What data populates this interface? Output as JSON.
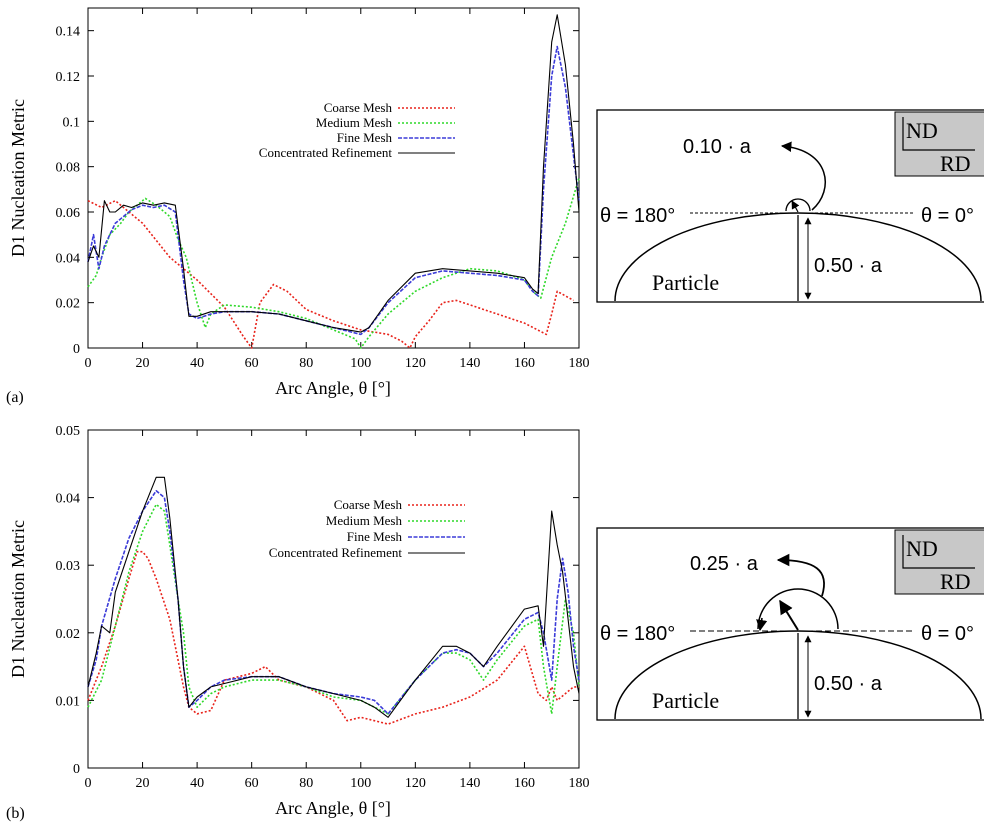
{
  "colors": {
    "coarse": "#e8231b",
    "medium": "#2fd82a",
    "fine": "#3b3bd8",
    "concentrated": "#000000",
    "schematic_box": "#c8c8c8"
  },
  "chart_data": [
    {
      "type": "line",
      "panel": "(a)",
      "xlabel": "Arc Angle, θ [°]",
      "ylabel": "D1 Nucleation Metric",
      "xlim": [
        0,
        180
      ],
      "ylim": [
        0,
        0.15
      ],
      "x_ticks": [
        0,
        20,
        40,
        60,
        80,
        100,
        120,
        140,
        160,
        180
      ],
      "y_ticks": [
        0,
        0.02,
        0.04,
        0.06,
        0.08,
        0.1,
        0.12,
        0.14
      ],
      "legend_position": "top-center",
      "series": [
        {
          "name": "Coarse Mesh",
          "x": [
            0,
            5,
            10,
            20,
            30,
            40,
            50,
            57,
            60,
            63,
            68,
            73,
            80,
            90,
            100,
            105,
            110,
            115,
            118,
            120,
            125,
            130,
            135,
            140,
            150,
            160,
            168,
            170,
            172,
            175,
            178
          ],
          "y": [
            0.065,
            0.062,
            0.065,
            0.055,
            0.04,
            0.03,
            0.018,
            0.005,
            0.0,
            0.02,
            0.028,
            0.025,
            0.017,
            0.012,
            0.008,
            0.007,
            0.006,
            0.003,
            0.0,
            0.005,
            0.012,
            0.02,
            0.021,
            0.019,
            0.015,
            0.011,
            0.006,
            0.015,
            0.025,
            0.023,
            0.021
          ]
        },
        {
          "name": "Medium Mesh",
          "x": [
            0,
            3,
            5,
            8,
            12,
            15,
            18,
            21,
            25,
            30,
            33,
            36,
            40,
            43,
            45,
            50,
            60,
            70,
            80,
            90,
            98,
            100,
            103,
            110,
            120,
            130,
            140,
            150,
            160,
            163,
            166,
            170,
            175,
            180
          ],
          "y": [
            0.027,
            0.032,
            0.04,
            0.05,
            0.055,
            0.06,
            0.063,
            0.066,
            0.063,
            0.058,
            0.048,
            0.04,
            0.02,
            0.009,
            0.015,
            0.019,
            0.018,
            0.016,
            0.013,
            0.008,
            0.004,
            0.0,
            0.005,
            0.015,
            0.025,
            0.031,
            0.035,
            0.034,
            0.03,
            0.025,
            0.022,
            0.04,
            0.055,
            0.075
          ]
        },
        {
          "name": "Fine Mesh",
          "x": [
            0,
            2,
            4,
            6,
            8,
            10,
            13,
            16,
            20,
            24,
            28,
            32,
            35,
            37,
            40,
            45,
            50,
            60,
            70,
            80,
            90,
            100,
            103,
            110,
            120,
            130,
            140,
            150,
            160,
            163,
            165,
            167,
            170,
            172,
            175,
            178,
            180
          ],
          "y": [
            0.038,
            0.05,
            0.035,
            0.045,
            0.05,
            0.055,
            0.058,
            0.061,
            0.063,
            0.062,
            0.063,
            0.06,
            0.03,
            0.015,
            0.013,
            0.015,
            0.016,
            0.016,
            0.015,
            0.012,
            0.009,
            0.006,
            0.009,
            0.02,
            0.031,
            0.034,
            0.033,
            0.032,
            0.03,
            0.025,
            0.023,
            0.07,
            0.12,
            0.133,
            0.115,
            0.085,
            0.065
          ]
        },
        {
          "name": "Concentrated Refinement",
          "x": [
            0,
            2,
            4,
            6,
            8,
            10,
            13,
            16,
            20,
            24,
            28,
            32,
            35,
            37,
            40,
            45,
            50,
            60,
            70,
            80,
            90,
            100,
            103,
            110,
            120,
            130,
            140,
            150,
            160,
            163,
            165,
            167,
            170,
            172,
            175,
            178,
            180
          ],
          "y": [
            0.038,
            0.045,
            0.04,
            0.065,
            0.06,
            0.06,
            0.063,
            0.062,
            0.064,
            0.063,
            0.064,
            0.063,
            0.035,
            0.014,
            0.014,
            0.016,
            0.016,
            0.016,
            0.015,
            0.012,
            0.009,
            0.007,
            0.009,
            0.021,
            0.033,
            0.035,
            0.034,
            0.033,
            0.031,
            0.026,
            0.024,
            0.08,
            0.135,
            0.147,
            0.125,
            0.09,
            0.06
          ]
        }
      ]
    },
    {
      "type": "line",
      "panel": "(b)",
      "xlabel": "Arc Angle, θ [°]",
      "ylabel": "D1 Nucleation Metric",
      "xlim": [
        0,
        180
      ],
      "ylim": [
        0,
        0.05
      ],
      "x_ticks": [
        0,
        20,
        40,
        60,
        80,
        100,
        120,
        140,
        160,
        180
      ],
      "y_ticks": [
        0,
        0.01,
        0.02,
        0.03,
        0.04,
        0.05
      ],
      "legend_position": "center-right",
      "series": [
        {
          "name": "Coarse Mesh",
          "x": [
            0,
            5,
            10,
            15,
            18,
            20,
            22,
            25,
            30,
            35,
            37,
            40,
            45,
            50,
            60,
            65,
            70,
            80,
            90,
            95,
            100,
            105,
            110,
            120,
            130,
            140,
            150,
            160,
            165,
            168,
            170,
            172,
            175,
            178,
            180
          ],
          "y": [
            0.01,
            0.015,
            0.021,
            0.028,
            0.032,
            0.032,
            0.031,
            0.028,
            0.022,
            0.012,
            0.009,
            0.008,
            0.0085,
            0.013,
            0.014,
            0.015,
            0.013,
            0.012,
            0.01,
            0.007,
            0.0075,
            0.007,
            0.0065,
            0.008,
            0.009,
            0.0105,
            0.013,
            0.018,
            0.011,
            0.01,
            0.012,
            0.01,
            0.011,
            0.012,
            0.012
          ]
        },
        {
          "name": "Medium Mesh",
          "x": [
            0,
            5,
            10,
            15,
            20,
            25,
            28,
            30,
            33,
            35,
            37,
            40,
            45,
            50,
            60,
            70,
            80,
            90,
            100,
            105,
            110,
            120,
            130,
            135,
            140,
            145,
            150,
            160,
            165,
            167,
            170,
            172,
            175,
            178,
            180
          ],
          "y": [
            0.009,
            0.013,
            0.021,
            0.029,
            0.035,
            0.039,
            0.038,
            0.033,
            0.025,
            0.02,
            0.012,
            0.009,
            0.011,
            0.012,
            0.013,
            0.013,
            0.012,
            0.0105,
            0.01,
            0.009,
            0.008,
            0.013,
            0.017,
            0.017,
            0.016,
            0.013,
            0.016,
            0.021,
            0.022,
            0.015,
            0.008,
            0.015,
            0.025,
            0.02,
            0.012
          ]
        },
        {
          "name": "Fine Mesh",
          "x": [
            0,
            3,
            5,
            10,
            15,
            20,
            25,
            28,
            30,
            33,
            35,
            37,
            40,
            45,
            50,
            60,
            70,
            80,
            90,
            100,
            105,
            110,
            120,
            130,
            135,
            140,
            145,
            150,
            160,
            165,
            167,
            170,
            172,
            174,
            176,
            178,
            180
          ],
          "y": [
            0.012,
            0.016,
            0.021,
            0.028,
            0.034,
            0.038,
            0.041,
            0.04,
            0.035,
            0.025,
            0.015,
            0.009,
            0.01,
            0.012,
            0.013,
            0.0135,
            0.0135,
            0.012,
            0.011,
            0.0105,
            0.01,
            0.008,
            0.013,
            0.017,
            0.0175,
            0.017,
            0.015,
            0.017,
            0.022,
            0.023,
            0.02,
            0.013,
            0.025,
            0.031,
            0.026,
            0.018,
            0.013
          ]
        },
        {
          "name": "Concentrated Refinement",
          "x": [
            0,
            3,
            5,
            8,
            10,
            15,
            20,
            25,
            28,
            30,
            33,
            35,
            37,
            40,
            45,
            50,
            60,
            70,
            80,
            90,
            100,
            105,
            110,
            120,
            130,
            135,
            140,
            145,
            150,
            160,
            165,
            167,
            170,
            172,
            174,
            176,
            178,
            180
          ],
          "y": [
            0.012,
            0.017,
            0.021,
            0.02,
            0.026,
            0.032,
            0.038,
            0.043,
            0.043,
            0.037,
            0.025,
            0.015,
            0.009,
            0.0105,
            0.012,
            0.0125,
            0.0135,
            0.0135,
            0.012,
            0.011,
            0.01,
            0.009,
            0.0075,
            0.013,
            0.018,
            0.018,
            0.017,
            0.015,
            0.018,
            0.0235,
            0.024,
            0.018,
            0.038,
            0.033,
            0.029,
            0.022,
            0.015,
            0.011
          ]
        }
      ]
    }
  ],
  "schematics": [
    {
      "angle_label": "0.10 · a",
      "left_angle": "θ = 180°",
      "right_angle": "θ = 0°",
      "height_label": "0.50 · a",
      "particle_label": "Particle",
      "axis_top": "ND",
      "axis_bottom": "RD"
    },
    {
      "angle_label": "0.25 · a",
      "left_angle": "θ = 180°",
      "right_angle": "θ = 0°",
      "height_label": "0.50 · a",
      "particle_label": "Particle",
      "axis_top": "ND",
      "axis_bottom": "RD"
    }
  ]
}
